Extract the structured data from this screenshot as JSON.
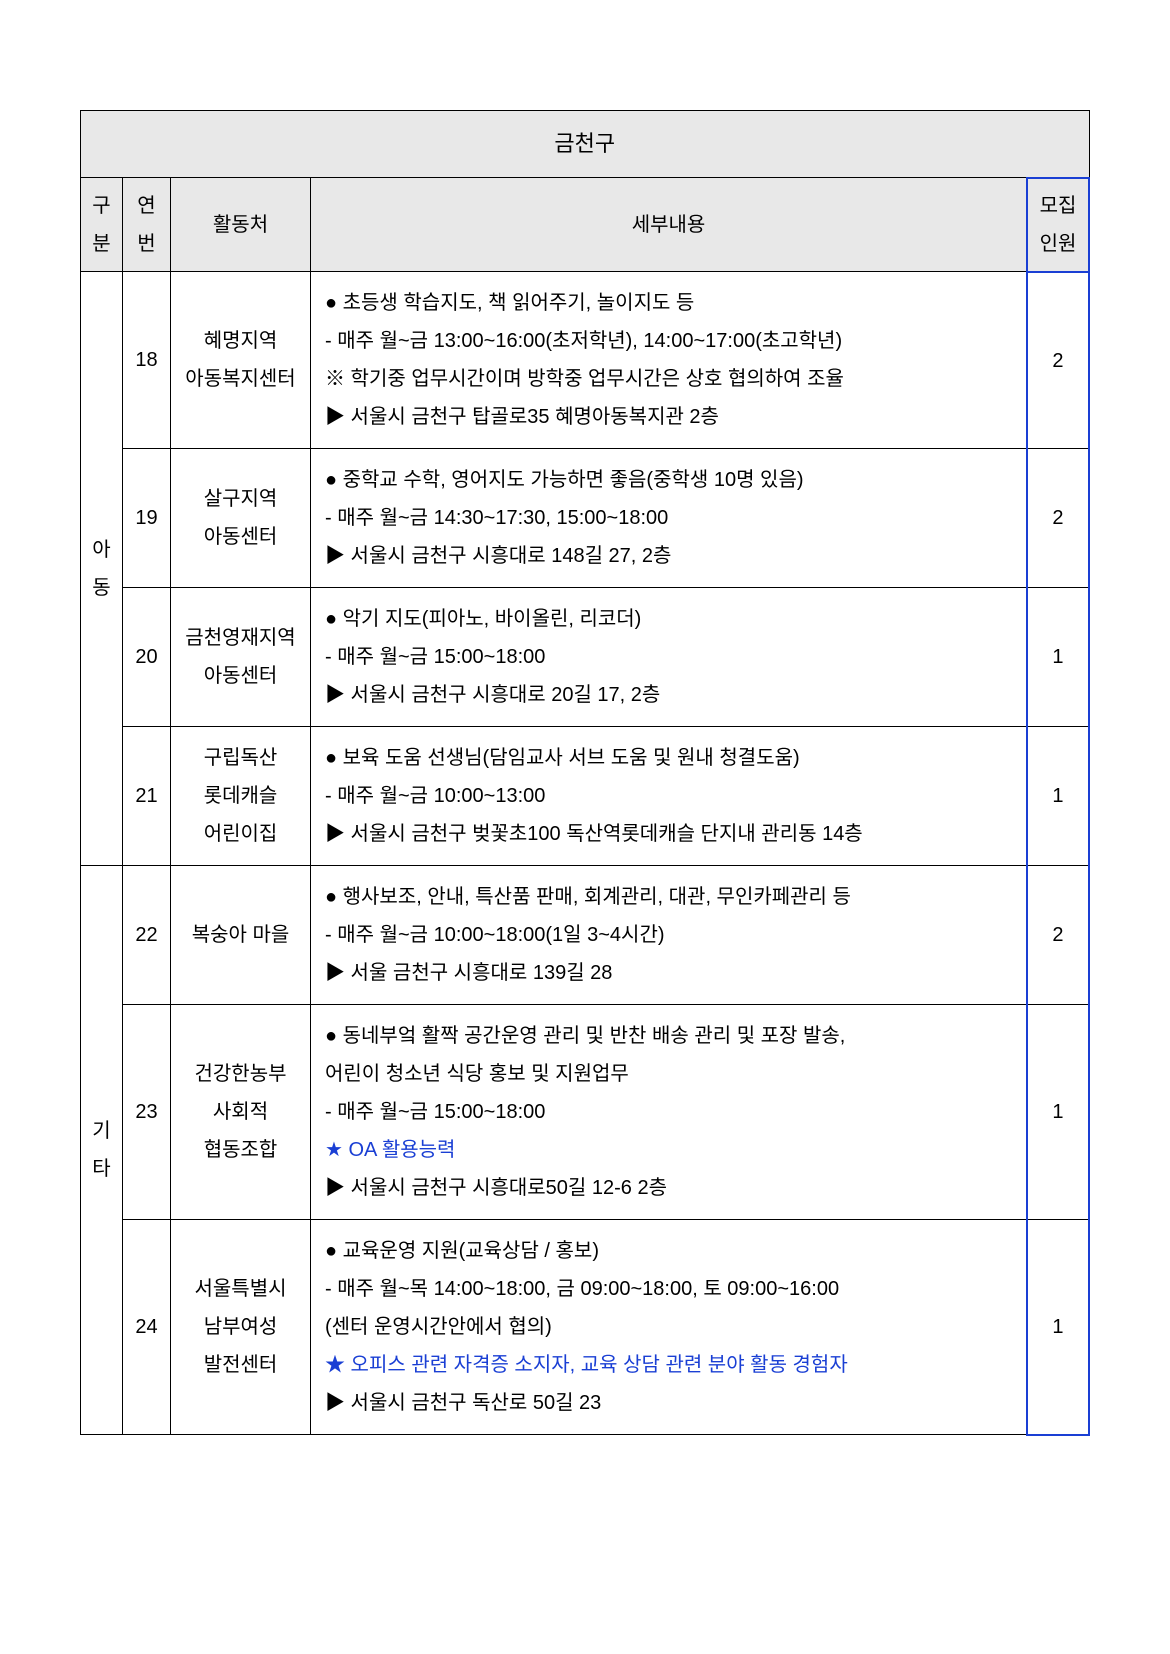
{
  "title": "금천구",
  "headers": {
    "category": "구\n분",
    "num": "연\n번",
    "place": "활동처",
    "detail": "세부내용",
    "count": "모집\n인원"
  },
  "groups": [
    {
      "category": "아\n동",
      "rows": [
        {
          "num": "18",
          "place": "혜명지역\n아동복지센터",
          "detail": [
            {
              "t": "● 초등생 학습지도, 책 읽어주기, 놀이지도 등"
            },
            {
              "t": "- 매주 월~금 13:00~16:00(초저학년), 14:00~17:00(초고학년)"
            },
            {
              "t": "※ 학기중 업무시간이며 방학중 업무시간은 상호 협의하여 조율"
            },
            {
              "t": "▶ 서울시 금천구 탑골로35 혜명아동복지관 2층"
            }
          ],
          "count": "2"
        },
        {
          "num": "19",
          "place": "살구지역\n아동센터",
          "detail": [
            {
              "t": "● 중학교 수학, 영어지도 가능하면 좋음(중학생 10명 있음)"
            },
            {
              "t": "- 매주 월~금 14:30~17:30, 15:00~18:00"
            },
            {
              "t": "▶ 서울시 금천구 시흥대로 148길 27, 2층"
            }
          ],
          "count": "2"
        },
        {
          "num": "20",
          "place": "금천영재지역\n아동센터",
          "detail": [
            {
              "t": "● 악기 지도(피아노, 바이올린, 리코더)"
            },
            {
              "t": "- 매주 월~금 15:00~18:00"
            },
            {
              "t": "▶ 서울시 금천구 시흥대로 20길 17, 2층"
            }
          ],
          "count": "1"
        },
        {
          "num": "21",
          "place": "구립독산\n롯데캐슬\n어린이집",
          "detail": [
            {
              "t": "● 보육 도움 선생님(담임교사 서브 도움 및 원내 청결도움)"
            },
            {
              "t": "- 매주 월~금 10:00~13:00"
            },
            {
              "t": "▶ 서울시 금천구 벚꽃초100 독산역롯데캐슬 단지내 관리동 14층"
            }
          ],
          "count": "1"
        }
      ]
    },
    {
      "category": "기\n타",
      "rows": [
        {
          "num": "22",
          "place": "복숭아 마을",
          "detail": [
            {
              "t": "● 행사보조, 안내, 특산품 판매, 회계관리, 대관, 무인카페관리 등"
            },
            {
              "t": "- 매주 월~금 10:00~18:00(1일 3~4시간)"
            },
            {
              "t": "▶ 서울 금천구 시흥대로 139길 28"
            }
          ],
          "count": "2"
        },
        {
          "num": "23",
          "place": "건강한농부\n사회적\n협동조합",
          "detail": [
            {
              "t": "● 동네부엌 활짝 공간운영 관리 및 반찬 배송 관리 및 포장 발송,"
            },
            {
              "t": "   어린이 청소년 식당 홍보 및 지원업무"
            },
            {
              "t": "- 매주 월~금 15:00~18:00"
            },
            {
              "t": "★ OA 활용능력",
              "star": true
            },
            {
              "t": "▶ 서울시 금천구 시흥대로50길 12-6 2층"
            }
          ],
          "count": "1"
        },
        {
          "num": "24",
          "place": "서울특별시\n남부여성\n발전센터",
          "detail": [
            {
              "t": "● 교육운영 지원(교육상담 / 홍보)"
            },
            {
              "t": "- 매주 월~목 14:00~18:00, 금 09:00~18:00, 토 09:00~16:00"
            },
            {
              "t": " (센터 운영시간안에서 협의)"
            },
            {
              "t": "★ 오피스 관련 자격증 소지자, 교육 상담 관련 분야 활동 경험자",
              "star": true
            },
            {
              "t": "▶ 서울시 금천구 독산로 50길 23"
            }
          ],
          "count": "1"
        }
      ]
    }
  ]
}
